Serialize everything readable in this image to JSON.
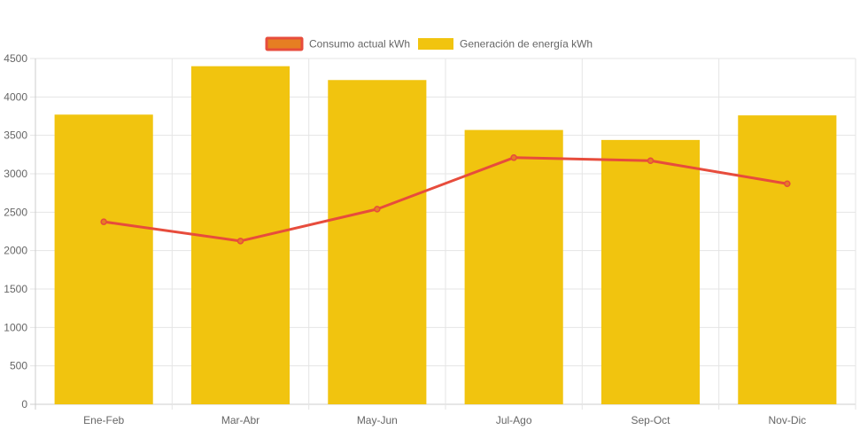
{
  "chart_data": {
    "type": "bar",
    "categories": [
      "Ene-Feb",
      "Mar-Abr",
      "May-Jun",
      "Jul-Ago",
      "Sep-Oct",
      "Nov-Dic"
    ],
    "series": [
      {
        "name": "Consumo actual kWh",
        "type": "line",
        "color": "#e74c3c",
        "legend_fill": "#e67e22",
        "values": [
          2375,
          2125,
          2540,
          3210,
          3170,
          2870
        ]
      },
      {
        "name": "Generación de energía kWh",
        "type": "bar",
        "color": "#f1c40f",
        "values": [
          3770,
          4400,
          4220,
          3570,
          3440,
          3760
        ]
      }
    ],
    "yticks": [
      "0",
      "500",
      "1000",
      "1500",
      "2000",
      "2500",
      "3000",
      "3500",
      "4000",
      "4500"
    ],
    "ylim": [
      0,
      4500
    ],
    "grid": true,
    "legend_position": "top-center"
  }
}
